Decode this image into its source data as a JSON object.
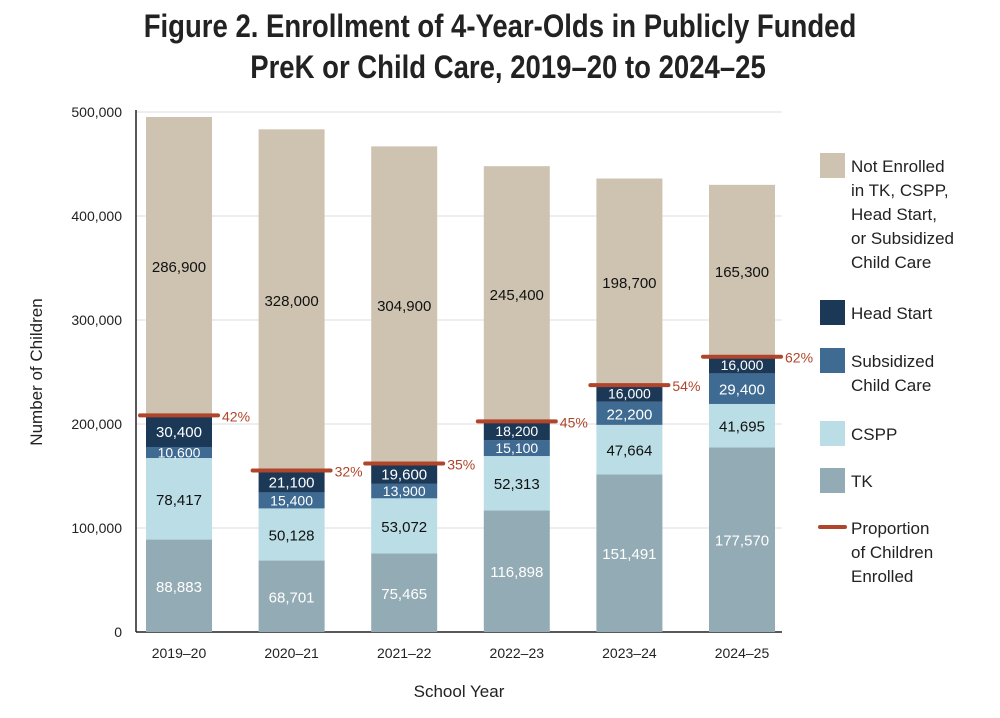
{
  "chart_data": {
    "type": "bar",
    "stacked": true,
    "title_line1": "Figure 2. Enrollment of 4-Year-Olds in Publicly Funded",
    "title_line2": "PreK or Child Care, 2019–20 to 2024–25",
    "xlabel": "School Year",
    "ylabel": "Number of Children",
    "ylim": [
      0,
      500000
    ],
    "yticks": [
      0,
      100000,
      200000,
      300000,
      400000,
      500000
    ],
    "ytick_labels": [
      "0",
      "100,000",
      "200,000",
      "300,000",
      "400,000",
      "500,000"
    ],
    "grid": true,
    "legend_position": "right",
    "categories": [
      "2019–20",
      "2020–21",
      "2021–22",
      "2022–23",
      "2023–24",
      "2024–25"
    ],
    "series": [
      {
        "name": "TK",
        "color": "#93abb4",
        "label_color": "#ffffff",
        "values": [
          88883,
          68701,
          75465,
          116898,
          151491,
          177570
        ],
        "labels": [
          "88,883",
          "68,701",
          "75,465",
          "116,898",
          "151,491",
          "177,570"
        ]
      },
      {
        "name": "CSPP",
        "color": "#badde6",
        "label_color": "#111111",
        "values": [
          78417,
          50128,
          53072,
          52313,
          47664,
          41695
        ],
        "labels": [
          "78,417",
          "50,128",
          "53,072",
          "52,313",
          "47,664",
          "41,695"
        ]
      },
      {
        "name": "Subsidized Child Care",
        "color": "#3f6a92",
        "label_color": "#ffffff",
        "values": [
          10600,
          15400,
          13900,
          15100,
          22200,
          29400
        ],
        "labels": [
          "10,600",
          "15,400",
          "13,900",
          "15,100",
          "22,200",
          "29,400"
        ]
      },
      {
        "name": "Head Start",
        "color": "#1b3857",
        "label_color": "#ffffff",
        "values": [
          30400,
          21100,
          19600,
          18200,
          16000,
          16000
        ],
        "labels": [
          "30,400",
          "21,100",
          "19,600",
          "18,200",
          "16,000",
          "16,000"
        ]
      },
      {
        "name": "Not Enrolled in TK, CSPP, Head Start, or Subsidized Child Care",
        "color": "#cdc3b0",
        "label_color": "#111111",
        "values": [
          286900,
          328000,
          304900,
          245400,
          198700,
          165300
        ],
        "labels": [
          "286,900",
          "328,000",
          "304,900",
          "245,400",
          "198,700",
          "165,300"
        ]
      }
    ],
    "proportion": {
      "name": "Proportion of Children Enrolled",
      "color": "#b0452b",
      "labels": [
        "42%",
        "32%",
        "35%",
        "45%",
        "54%",
        "62%"
      ]
    },
    "legend": [
      {
        "lines": [
          "Not Enrolled",
          "in TK, CSPP,",
          "Head Start,",
          "or Subsidized",
          "Child Care"
        ],
        "color": "#cdc3b0",
        "kind": "box"
      },
      {
        "lines": [
          "Head Start"
        ],
        "color": "#1b3857",
        "kind": "box"
      },
      {
        "lines": [
          "Subsidized",
          "Child Care"
        ],
        "color": "#3f6a92",
        "kind": "box"
      },
      {
        "lines": [
          "CSPP"
        ],
        "color": "#badde6",
        "kind": "box"
      },
      {
        "lines": [
          "TK"
        ],
        "color": "#93abb4",
        "kind": "box"
      },
      {
        "lines": [
          "Proportion",
          "of Children",
          "Enrolled"
        ],
        "color": "#b0452b",
        "kind": "line"
      }
    ]
  }
}
